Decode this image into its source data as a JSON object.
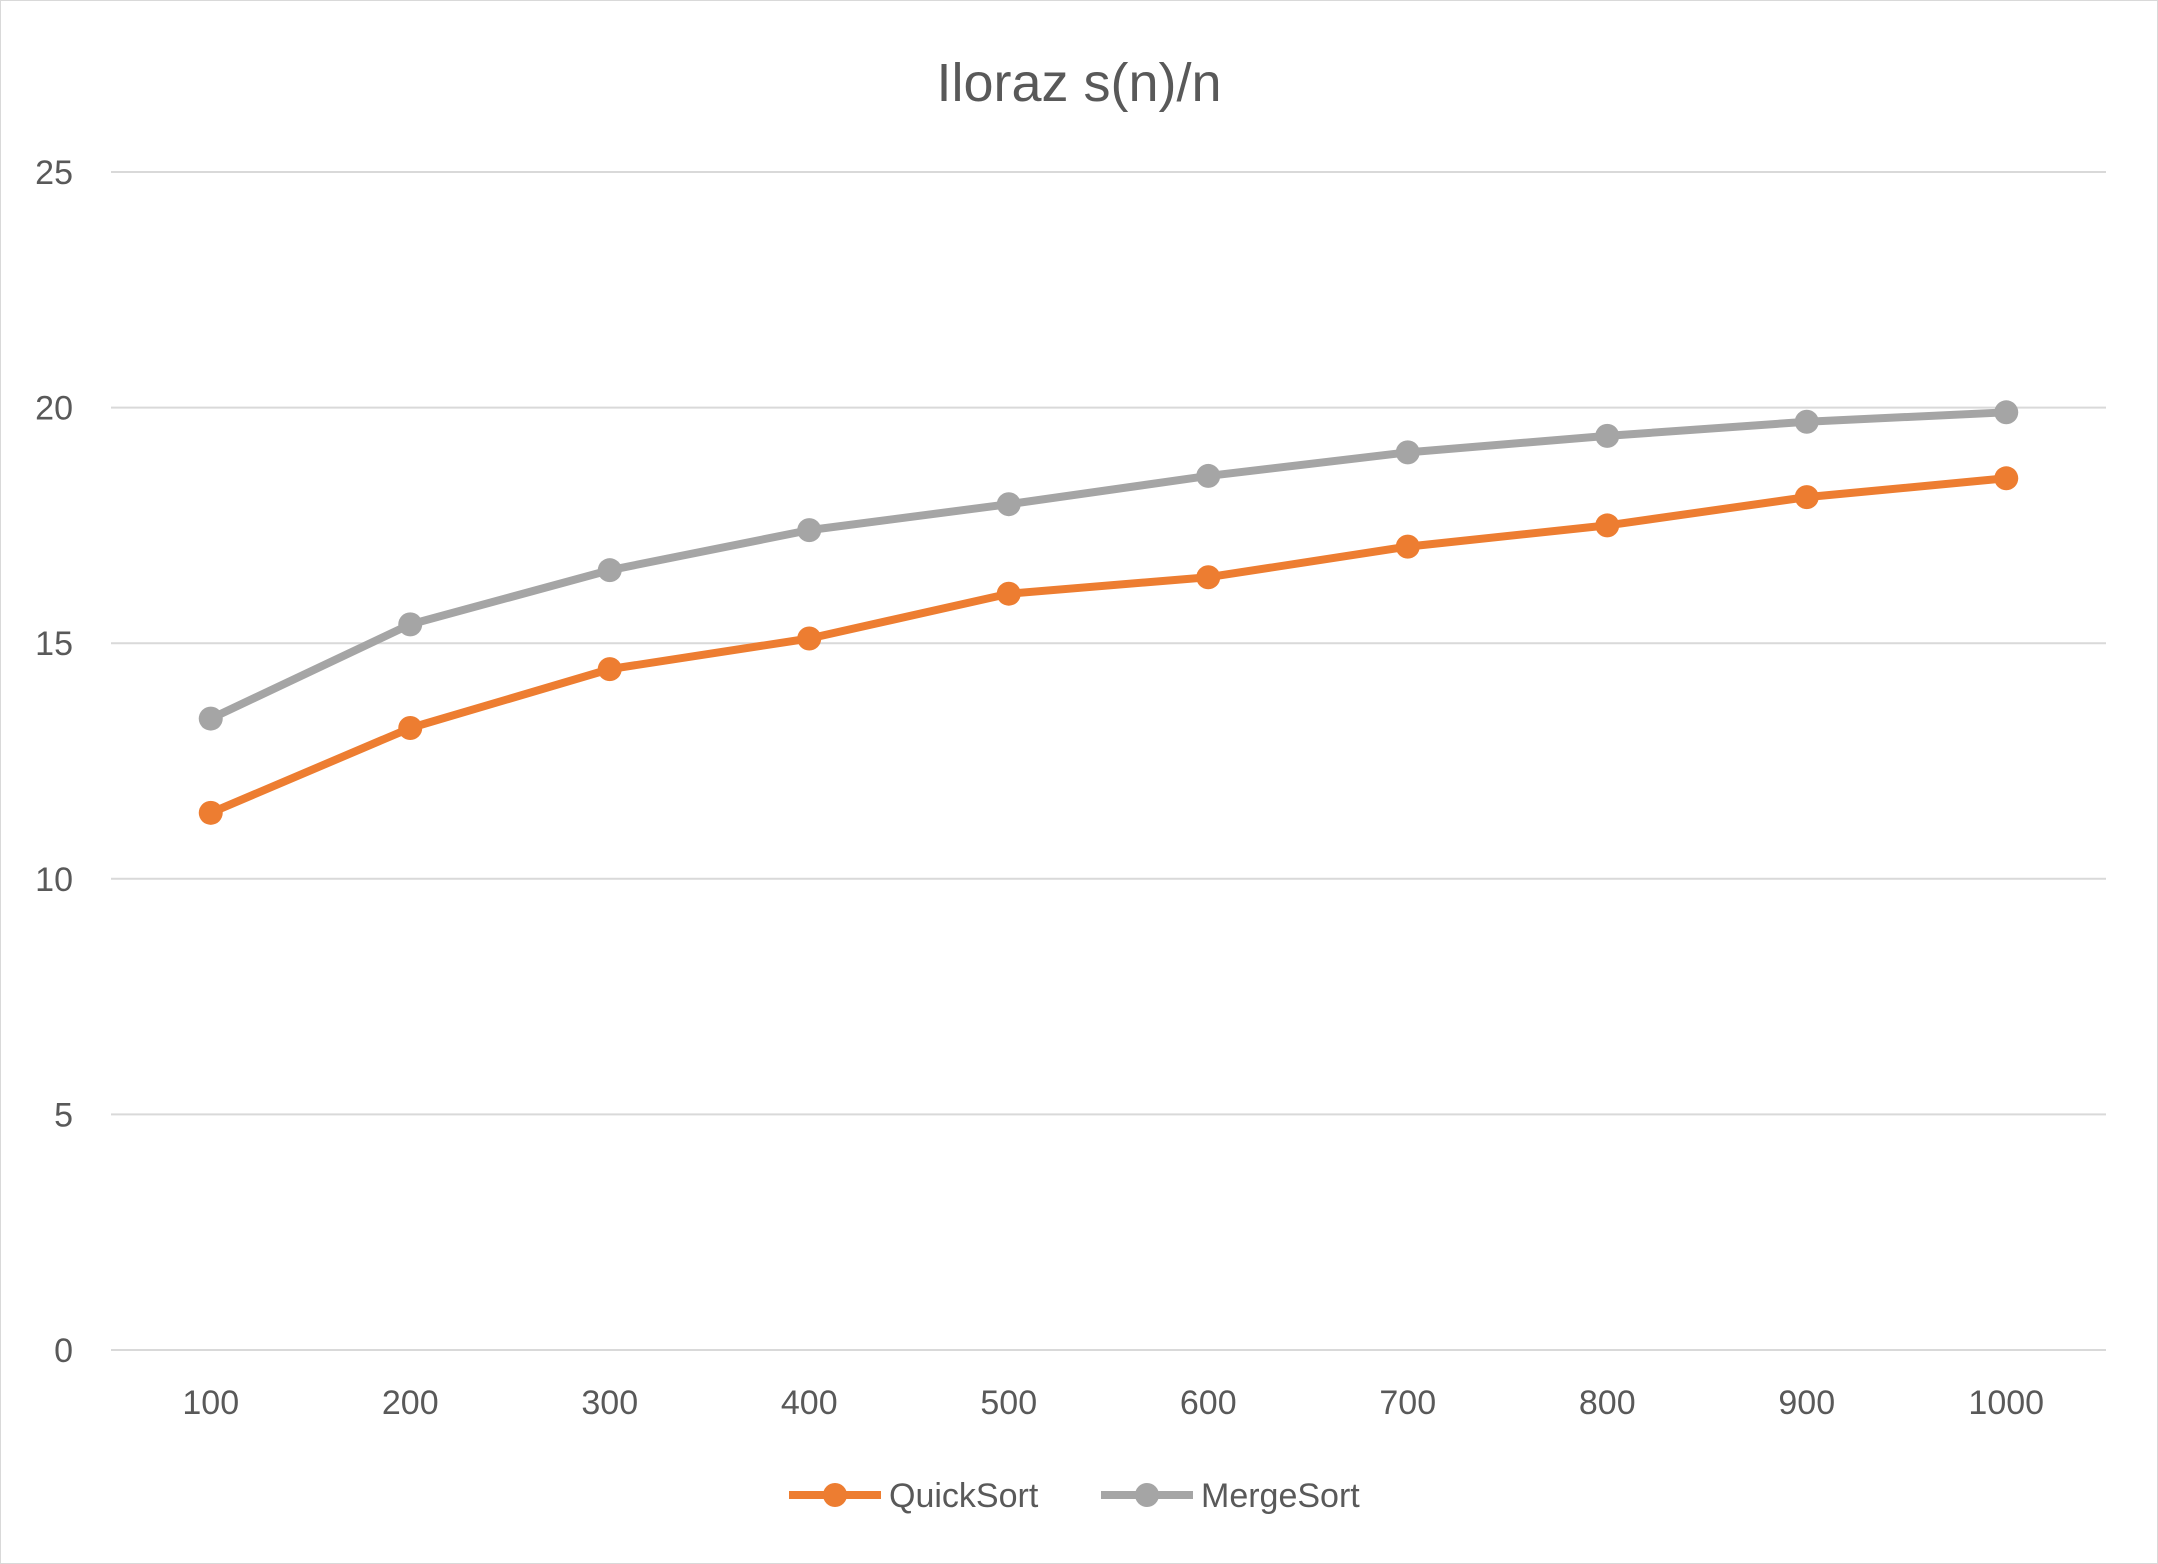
{
  "chart_data": {
    "type": "line",
    "title": "Iloraz s(n)/n",
    "categories": [
      "100",
      "200",
      "300",
      "400",
      "500",
      "600",
      "700",
      "800",
      "900",
      "1000"
    ],
    "series": [
      {
        "name": "QuickSort",
        "color": "#ED7D31",
        "values": [
          11.4,
          13.2,
          14.45,
          15.1,
          16.05,
          16.4,
          17.05,
          17.5,
          18.1,
          18.5
        ]
      },
      {
        "name": "MergeSort",
        "color": "#A5A5A5",
        "values": [
          13.4,
          15.4,
          16.55,
          17.4,
          17.95,
          18.55,
          19.05,
          19.4,
          19.7,
          19.9
        ]
      }
    ],
    "ylim": [
      0,
      25
    ],
    "yticks": [
      "0",
      "5",
      "10",
      "15",
      "20",
      "25"
    ],
    "grid": true,
    "legend_position": "bottom"
  }
}
